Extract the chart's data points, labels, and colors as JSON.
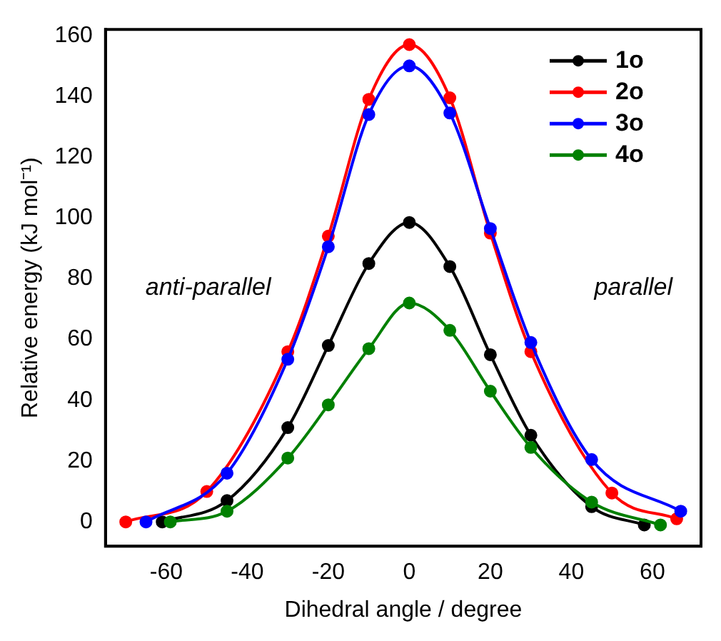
{
  "chart_data": {
    "type": "line",
    "xlabel": "Dihedral angle / degree",
    "ylabel": "Relative energy (kJ mol⁻¹)",
    "xlim": [
      -75,
      72
    ],
    "ylim": [
      -8,
      162
    ],
    "xticks": [
      -60,
      -40,
      -20,
      0,
      20,
      40,
      60
    ],
    "yticks": [
      0,
      20,
      40,
      60,
      80,
      100,
      120,
      140,
      160
    ],
    "grid": false,
    "legend": "top right",
    "marker": "circle",
    "line_style": "solid",
    "annotations": [
      "anti-parallel",
      "parallel"
    ],
    "series": [
      {
        "name": "1o",
        "color": "#000000",
        "x": [
          -61,
          -45,
          -30,
          -20,
          -10,
          0,
          10,
          20,
          30,
          45,
          58
        ],
        "values": [
          0,
          7,
          31,
          58,
          85,
          98.5,
          84,
          55,
          28.5,
          5,
          -1
        ]
      },
      {
        "name": "2o",
        "color": "#ff0000",
        "x": [
          -70,
          -50,
          -30,
          -20,
          -10,
          0,
          10,
          20,
          30,
          50,
          66
        ],
        "values": [
          0,
          10,
          56,
          94,
          139,
          157,
          139.5,
          95,
          56,
          9.5,
          1
        ]
      },
      {
        "name": "3o",
        "color": "#0000ff",
        "x": [
          -65,
          -45,
          -30,
          -20,
          -10,
          0,
          10,
          20,
          30,
          45,
          67
        ],
        "values": [
          0,
          16,
          53.5,
          90.5,
          134,
          150,
          134.5,
          96.5,
          59,
          20.5,
          3.5
        ]
      },
      {
        "name": "4o",
        "color": "#008000",
        "x": [
          -59,
          -45,
          -30,
          -20,
          -10,
          0,
          10,
          20,
          30,
          45,
          62
        ],
        "values": [
          0,
          3.5,
          21,
          38.5,
          57,
          72,
          63,
          43,
          24.5,
          6.5,
          -1
        ]
      }
    ]
  }
}
